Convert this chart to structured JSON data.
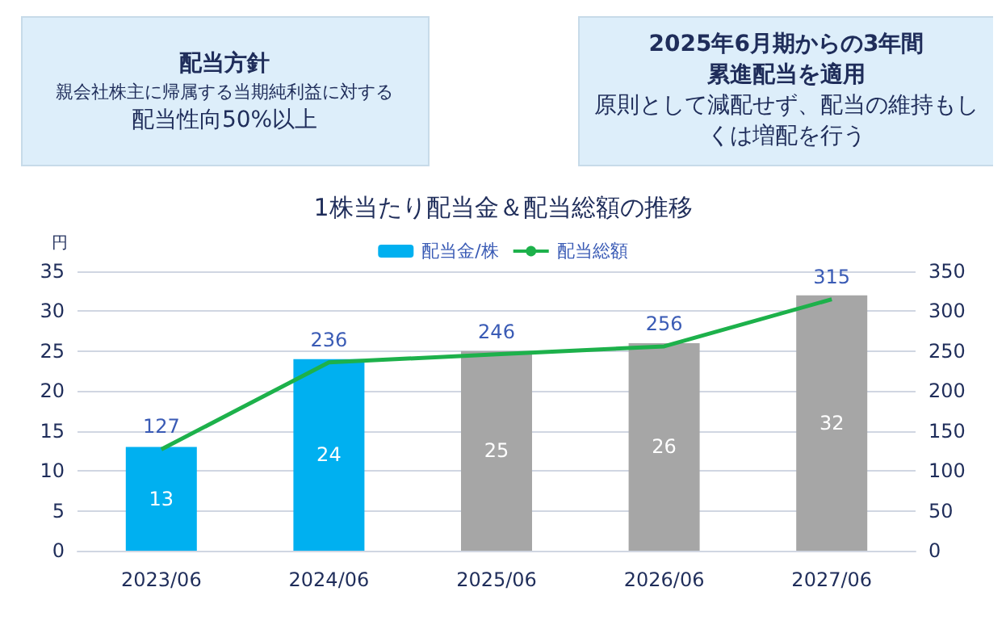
{
  "chart_data": {
    "type": "bar",
    "title": "1株当たり配当金＆配当総額の推移",
    "ylabel": "円",
    "annotations": [
      "配当方針",
      "親会社株主に帰属する当期純利益に対する",
      "配当性向50%以上",
      "2025年6月期からの3年間",
      "累進配当を適用",
      "原則として減配せず、配当の維持もしくは増配を行う"
    ],
    "categories": [
      "2023/06",
      "2024/06",
      "2025/06",
      "2026/06",
      "2027/06"
    ],
    "series": [
      {
        "name": "配当金/株",
        "color": "#00b0f0",
        "colors": [
          "#00b0f0",
          "#00b0f0",
          "#a6a6a6",
          "#a6a6a6",
          "#a6a6a6"
        ],
        "values": [
          13,
          24,
          25,
          26,
          32
        ]
      },
      {
        "name": "配当総額",
        "type": "line",
        "axis": "y2",
        "color": "#1db14b",
        "values": [
          127,
          236,
          246,
          256,
          315
        ]
      }
    ],
    "ylim": [
      0,
      35
    ],
    "yticks": [
      0,
      5,
      10,
      15,
      20,
      25,
      30,
      35
    ],
    "y2lim": [
      0,
      350
    ],
    "y2ticks": [
      0,
      50,
      100,
      150,
      200,
      250,
      300,
      350
    ],
    "grid": "y",
    "legend": "top",
    "data_labels": true,
    "marker": "none"
  }
}
